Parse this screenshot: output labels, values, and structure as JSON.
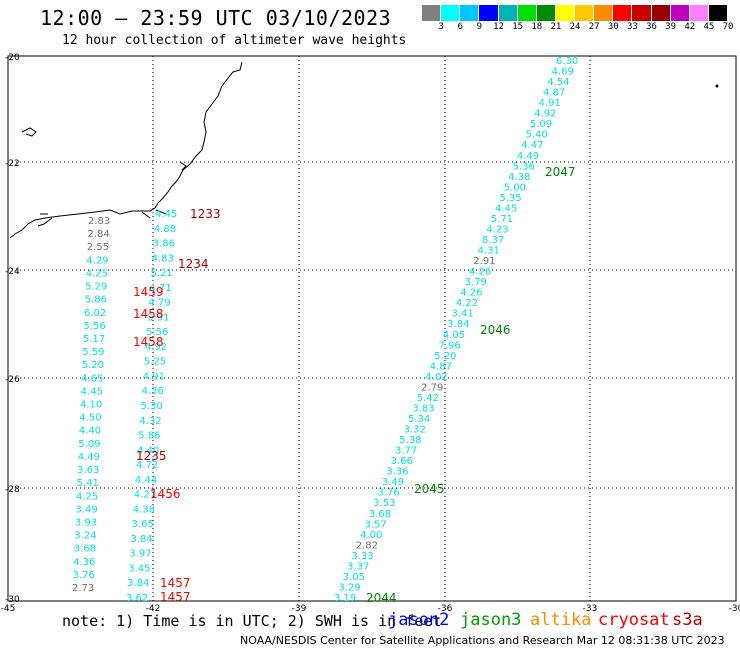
{
  "title": "12:00 – 23:59 UTC 03/10/2023",
  "subtitle": "12 hour collection of altimeter wave heights",
  "colorbar": {
    "labels": [
      "3",
      "6",
      "9",
      "12",
      "15",
      "18",
      "21",
      "24",
      "27",
      "30",
      "33",
      "36",
      "39",
      "42",
      "45",
      "70",
      "(ft)"
    ],
    "colors": [
      "#808080",
      "#00ffff",
      "#00c8ff",
      "#0000ff",
      "#00b4b4",
      "#00e000",
      "#008c00",
      "#ffff00",
      "#ffc800",
      "#ff8c00",
      "#ff0000",
      "#c80000",
      "#960000",
      "#c000c0",
      "#ff80ff",
      "#000000"
    ]
  },
  "axes": {
    "lat_labels": [
      "-20",
      "-22",
      "-24",
      "-26",
      "-28",
      "-30"
    ],
    "lon_labels": [
      "-45",
      "-42",
      "-39",
      "-36",
      "-33",
      "-30"
    ]
  },
  "colors": {
    "swh": "#00e6e6",
    "swh_low": "#707070",
    "time_jason3": "#008c00",
    "time_s3a": "#b40000",
    "time_red": "#ff0000"
  },
  "tracks": {
    "east_values": [
      "6.30",
      "4.69",
      "4.54",
      "4.87",
      "4.91",
      "4.92",
      "5.09",
      "5.40",
      "4.47",
      "4.49",
      "5.36",
      "4.38",
      "5.00",
      "5.35",
      "4.45",
      "5.71",
      "4.23",
      "8.37",
      "4.31",
      "2.91",
      "4.26",
      "3.79",
      "4.26",
      "4.22",
      "3.41",
      "3.84",
      "4.05",
      "7.96",
      "5.20",
      "4.87",
      "4.02",
      "2.79",
      "5.42",
      "3.83",
      "5.34",
      "3.32",
      "5.38",
      "3.77",
      "3.66",
      "3.36",
      "3.49",
      "3.76",
      "3.53",
      "3.68",
      "3.57",
      "4.00",
      "2.82",
      "3.33",
      "3.37",
      "3.05",
      "3.29",
      "3.19"
    ],
    "west_a_values": [
      "4.45",
      "4.88",
      "3.86",
      "4.83",
      "5.21",
      "4.71",
      "4.79",
      "5.31",
      "5.56",
      "4.92",
      "5.25",
      "4.91",
      "4.36",
      "5.30",
      "4.32",
      "5.86",
      "4.40",
      "4.72",
      "4.44",
      "4.27",
      "4.38",
      "3.65",
      "3.84",
      "3.97",
      "3.45",
      "3.84",
      "3.62"
    ],
    "west_b_values": [
      "2.83",
      "2.84",
      "2.55",
      "4.29",
      "4.25",
      "5.29",
      "5.86",
      "6.02",
      "5.56",
      "5.17",
      "5.59",
      "5.20",
      "4.65",
      "4.45",
      "4.10",
      "4.50",
      "4.40",
      "5.09",
      "4.49",
      "3.63",
      "5.41",
      "4.25",
      "3.49",
      "3.93",
      "3.24",
      "3.68",
      "4.36",
      "3.76",
      "2.73"
    ]
  },
  "pass_times": [
    {
      "label": "2047",
      "color": "#008c00"
    },
    {
      "label": "2046",
      "color": "#008c00"
    },
    {
      "label": "2045",
      "color": "#008c00"
    },
    {
      "label": "2044",
      "color": "#008c00"
    },
    {
      "label": "1233",
      "color": "#b40000"
    },
    {
      "label": "1234",
      "color": "#b40000"
    },
    {
      "label": "1459",
      "color": "#ff0000"
    },
    {
      "label": "1458",
      "color": "#ff0000"
    },
    {
      "label": "1458",
      "color": "#ff0000"
    },
    {
      "label": "1235",
      "color": "#b40000"
    },
    {
      "label": "1456",
      "color": "#ff0000"
    },
    {
      "label": "1457",
      "color": "#ff0000"
    },
    {
      "label": "1457",
      "color": "#ff0000"
    }
  ],
  "note": "note:  1) Time is in UTC;  2) SWH is in feet",
  "missions": [
    {
      "label": "jason2",
      "color": "#0000ff"
    },
    {
      "label": "jason3",
      "color": "#00a000"
    },
    {
      "label": "altika",
      "color": "#ff8c00"
    },
    {
      "label": "cryosat",
      "color": "#ff0000"
    },
    {
      "label": "s3a",
      "color": "#c00000"
    }
  ],
  "credit": "NOAA/NESDIS Center for Satellite Applications and Research    Mar 12 08:31:38 UTC 2023"
}
